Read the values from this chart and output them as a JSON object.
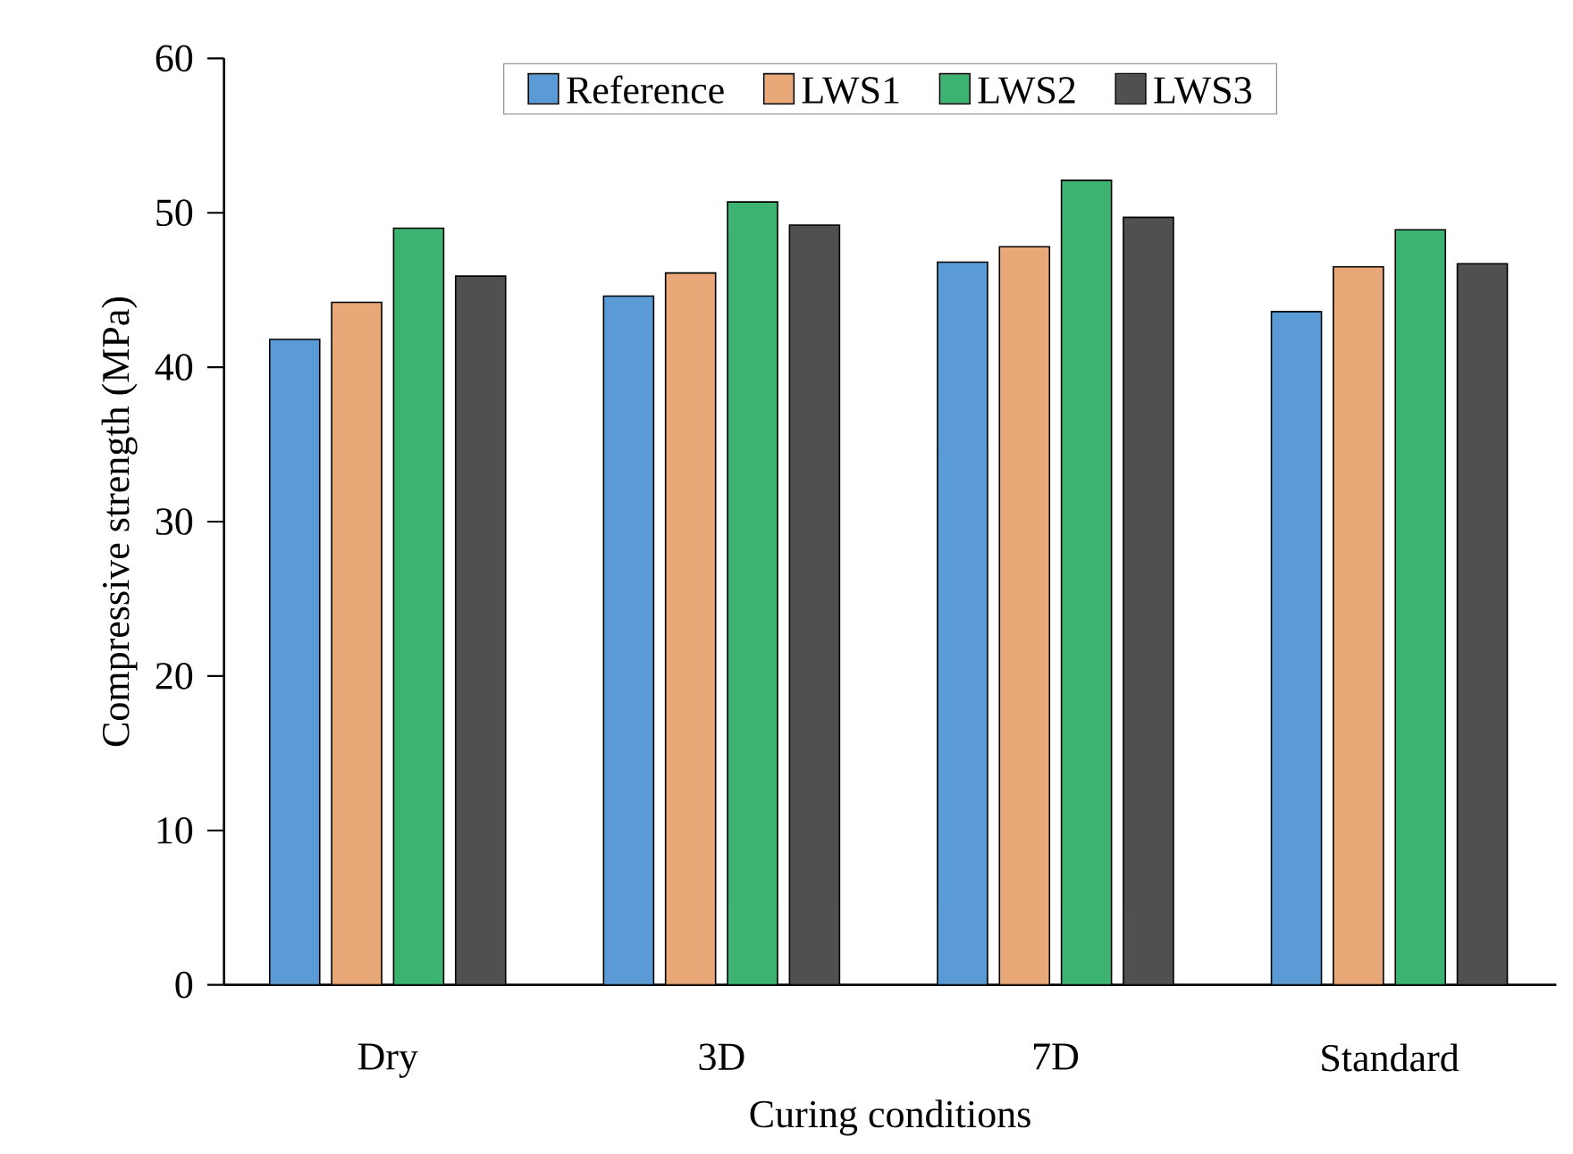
{
  "chart_data": {
    "type": "bar",
    "xlabel": "Curing conditions",
    "ylabel": "Compressive strength (MPa)",
    "categories": [
      "Dry",
      "3D",
      "7D",
      "Standard"
    ],
    "series": [
      {
        "name": "Reference",
        "color": "#5b9bd5",
        "values": [
          41.8,
          44.6,
          46.8,
          43.6
        ]
      },
      {
        "name": "LWS1",
        "color": "#e8a878",
        "values": [
          44.2,
          46.1,
          47.8,
          46.5
        ]
      },
      {
        "name": "LWS2",
        "color": "#3cb371",
        "values": [
          49.0,
          50.7,
          52.1,
          48.9
        ]
      },
      {
        "name": "LWS3",
        "color": "#505050",
        "values": [
          45.9,
          49.2,
          49.7,
          46.7
        ]
      }
    ],
    "ylim": [
      0,
      60
    ],
    "yticks": [
      0,
      10,
      20,
      30,
      40,
      50,
      60
    ],
    "grid": false,
    "legend": "top"
  }
}
